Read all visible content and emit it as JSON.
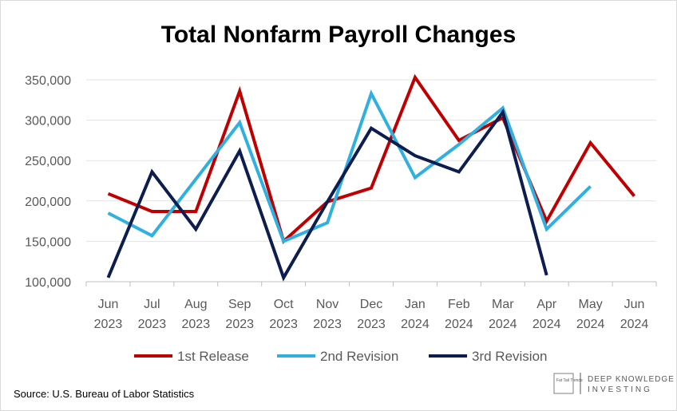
{
  "chart_data": {
    "type": "line",
    "title": "Total Nonfarm Payroll Changes",
    "categories": [
      [
        "Jun",
        "2023"
      ],
      [
        "Jul",
        "2023"
      ],
      [
        "Aug",
        "2023"
      ],
      [
        "Sep",
        "2023"
      ],
      [
        "Oct",
        "2023"
      ],
      [
        "Nov",
        "2023"
      ],
      [
        "Dec",
        "2023"
      ],
      [
        "Jan",
        "2024"
      ],
      [
        "Feb",
        "2024"
      ],
      [
        "Mar",
        "2024"
      ],
      [
        "Apr",
        "2024"
      ],
      [
        "May",
        "2024"
      ],
      [
        "Jun",
        "2024"
      ]
    ],
    "ylim": [
      100000,
      350000
    ],
    "yticks": [
      "100,000",
      "150,000",
      "200,000",
      "250,000",
      "300,000",
      "350,000"
    ],
    "ytick_values": [
      100000,
      150000,
      200000,
      250000,
      300000,
      350000
    ],
    "grid": true,
    "legend_position": "bottom",
    "series": [
      {
        "name": "1st Release",
        "color": "#c00000",
        "values": [
          209000,
          187000,
          187000,
          336000,
          150000,
          199000,
          216000,
          353000,
          275000,
          303000,
          175000,
          272000,
          206000
        ]
      },
      {
        "name": "2nd Revision",
        "color": "#2fb0e0",
        "values": [
          185000,
          157000,
          227000,
          297000,
          150000,
          173000,
          333000,
          229000,
          270000,
          315000,
          165000,
          218000,
          null
        ]
      },
      {
        "name": "3rd Revision",
        "color": "#0d1d4f",
        "values": [
          105000,
          236000,
          165000,
          262000,
          105000,
          199000,
          290000,
          256000,
          236000,
          310000,
          108000,
          null,
          null
        ]
      }
    ],
    "source": "Source: U.S. Bureau of Labor Statistics"
  },
  "logos": {
    "left_logo_text": "Fat Tail Trends",
    "brand_line1": "DEEP KNOWLEDGE",
    "brand_line2": "INVESTING"
  }
}
